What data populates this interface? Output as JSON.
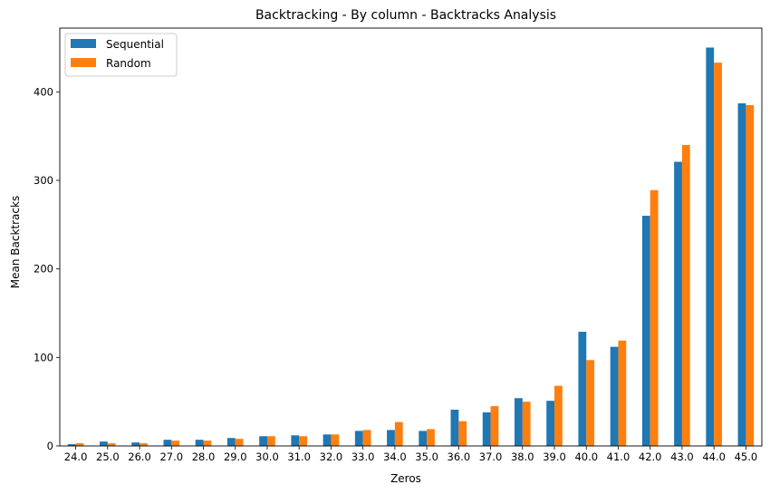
{
  "chart_data": {
    "type": "bar",
    "title": "Backtracking - By column - Backtracks Analysis",
    "xlabel": "Zeros",
    "ylabel": "Mean Backtracks",
    "categories": [
      "24.0",
      "25.0",
      "26.0",
      "27.0",
      "28.0",
      "29.0",
      "30.0",
      "31.0",
      "32.0",
      "33.0",
      "34.0",
      "35.0",
      "36.0",
      "37.0",
      "38.0",
      "39.0",
      "40.0",
      "41.0",
      "42.0",
      "43.0",
      "44.0",
      "45.0"
    ],
    "series": [
      {
        "name": "Sequential",
        "color": "#1f77b4",
        "values": [
          2,
          5,
          4,
          7,
          7,
          9,
          11,
          12,
          13,
          17,
          18,
          17,
          41,
          38,
          54,
          51,
          129,
          112,
          260,
          321,
          450,
          387
        ]
      },
      {
        "name": "Random",
        "color": "#ff7f0e",
        "values": [
          3,
          3,
          3,
          6,
          6,
          8,
          11,
          11,
          13,
          18,
          27,
          19,
          28,
          45,
          50,
          68,
          97,
          119,
          289,
          340,
          433,
          385
        ]
      }
    ],
    "ylim": [
      0,
      472
    ],
    "yticks": [
      "0",
      "100",
      "200",
      "300",
      "400"
    ],
    "legend_position": "top-left",
    "grid": false
  }
}
